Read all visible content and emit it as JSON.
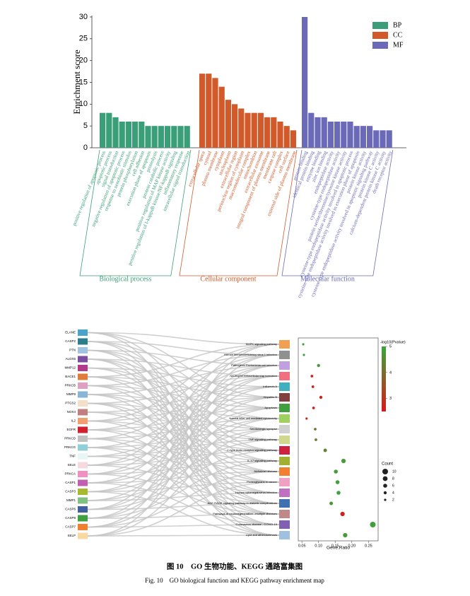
{
  "chart_data": [
    {
      "type": "bar",
      "ylabel": "Enrichment score",
      "ylim": [
        0,
        30
      ],
      "yticks": [
        0,
        5,
        10,
        15,
        20,
        25,
        30
      ],
      "groups": [
        {
          "name": "BP",
          "label": "Biological process",
          "color": "#3a9e78",
          "categories": [
            "positive regulation of apoptotic process",
            "apoptotic process",
            "signal transduction",
            "negative regulation of apoptotic process",
            "response to xenobiotic stimulus",
            "protein phosphorylation",
            "cell adhesion",
            "execution phase of apoptosis",
            "proteolysis",
            "protein catabolic process",
            "positive regulation of MAP kinase activity",
            "positive regulation of I-kappaB kinase/NF-kappaB signaling",
            "inflammatory response",
            "intracellular signal transduction"
          ],
          "values": [
            8,
            8,
            7,
            6,
            6,
            6,
            6,
            5,
            5,
            5,
            5,
            5,
            5,
            5
          ]
        },
        {
          "name": "CC",
          "label": "Cellular component",
          "color": "#d2592a",
          "categories": [
            "extracellular space",
            "cytosol",
            "plasma membrane",
            "cytoplasm",
            "nucleoplasm",
            "extracellular region",
            "perinuclear region of cytoplasm",
            "macromolecular complex",
            "mitochondrion",
            "extracellular exosome",
            "integral component of plasma membrane",
            "membrane raft",
            "caspase complex",
            "cell surface",
            "external side of plasma membrane"
          ],
          "values": [
            17,
            17,
            16,
            14,
            11,
            10,
            9,
            8,
            8,
            8,
            7,
            7,
            6,
            5,
            4
          ]
        },
        {
          "name": "MF",
          "label": "Molecular function",
          "color": "#6a6ab8",
          "categories": [
            "protein binding",
            "identical protein binding",
            "enzyme binding",
            "zinc ion binding",
            "endopeptidase activity",
            "cysteine-type endopeptidase activity",
            "protein serine/threonine/tyrosine kinase activity",
            "cysteine-type endopeptidase activity involved in apoptotic process",
            "cysteine-type endopeptidase activity involved in execution phase of apoptosis",
            "protein kinase activity",
            "cysteine-type endopeptidase activity involved in apoptotic signaling pathway",
            "protein kinase C activity",
            "calcium-dependent protein kinase C activity",
            "death receptor activity"
          ],
          "values": [
            30,
            8,
            7,
            7,
            6,
            6,
            6,
            6,
            5,
            5,
            5,
            4,
            4,
            4
          ]
        }
      ]
    },
    {
      "type": "sankey-dot",
      "genes": [
        "ELANE",
        "CASP2",
        "PTN",
        "ALOX5",
        "MMP12",
        "BACE1",
        "PRKCB",
        "MMP9",
        "PTGS2",
        "NOX4",
        "IL2",
        "EGFR",
        "PRKCD",
        "PRKCG",
        "TNF",
        "SELE",
        "PRKCA",
        "CASP1",
        "CASP3",
        "MMP1",
        "CASP6",
        "CASP8",
        "CASP7",
        "SELP"
      ],
      "gene_colors": [
        "#4aa3c8",
        "#2e7d8c",
        "#9fc3e0",
        "#7b4ea0",
        "#b23a8a",
        "#e07b39",
        "#e0a0c0",
        "#8ab6d6",
        "#f4e0c8",
        "#c08080",
        "#f0a070",
        "#d02030",
        "#c0c0c0",
        "#8fd0d8",
        "#e8f6f6",
        "#f6d8e0",
        "#f090c0",
        "#c060b0",
        "#a8b830",
        "#80c080",
        "#4060a0",
        "#40a040",
        "#f08030",
        "#f8d8a0"
      ],
      "pathways": [
        "MAPK signaling pathway",
        "Human immunodeficiency virus 1 infection",
        "Pathogenic Escherichia coli infection",
        "Neutrophil extracellular trap formation",
        "Influenza A",
        "Hepatitis B",
        "Apoptosis",
        "Natural killer cell mediated cytotoxicity",
        "Serotonergic synapse",
        "TNF signaling pathway",
        "C-type lectin receptor signaling pathway",
        "IL-17 signaling pathway",
        "Alzheimer disease",
        "Proteoglycans in cancer",
        "Human cytomegalovirus infection",
        "AGE-RAGE signaling pathway in diabetic complications",
        "Pathways of neurodegeneration - multiple diseases",
        "Coronavirus disease - COVID-19",
        "Lipid and atherosclerosis"
      ],
      "pathway_colors": [
        "#f0a050",
        "#909090",
        "#c0a0e0",
        "#f07080",
        "#40b0c0",
        "#804040",
        "#40a040",
        "#a0d060",
        "#d0d0d0",
        "#d0d890",
        "#d02040",
        "#a0b030",
        "#f08030",
        "#f0a0c0",
        "#c070c0",
        "#4070b0",
        "#c08888",
        "#8060b0",
        "#a0c0e0"
      ],
      "x": [
        0.054,
        0.056,
        0.1,
        0.08,
        0.083,
        0.107,
        0.085,
        0.064,
        0.09,
        0.092,
        0.12,
        0.175,
        0.152,
        0.157,
        0.16,
        0.138,
        0.172,
        0.263,
        0.18
      ],
      "counts": [
        2,
        2,
        4,
        3,
        3,
        4,
        3,
        2,
        3,
        3,
        5,
        7,
        6,
        6,
        6,
        5,
        7,
        10,
        7
      ],
      "pvalues": [
        5,
        4.9,
        4.7,
        2.6,
        2.7,
        2.8,
        2.7,
        2.9,
        4.2,
        4.3,
        4.4,
        4.8,
        4.8,
        4.9,
        4.9,
        4.7,
        2.6,
        4.9,
        4.8
      ],
      "xlim": [
        0.039,
        0.279
      ],
      "xticks": [
        0.05,
        {
          "value": 0.1,
          "label": "0.10"
        },
        0.15,
        {
          "value": 0.2,
          "label": "0.20"
        },
        0.25
      ],
      "xlabel": "Gene.Ratio",
      "colorbar_title": "-log10(Pvalue)",
      "clim": [
        2.5,
        5
      ],
      "cticks": [
        3,
        4,
        5
      ],
      "colormap": [
        "#d7191c",
        "#3aa63a"
      ],
      "size_title": "Count",
      "sizeticks": [
        10,
        8,
        6,
        4,
        2
      ]
    }
  ],
  "caption": {
    "zh": "图 10　GO 生物功能、KEGG 通路富集图",
    "en": "Fig. 10　GO biological function and KEGG pathway enrichment map"
  }
}
